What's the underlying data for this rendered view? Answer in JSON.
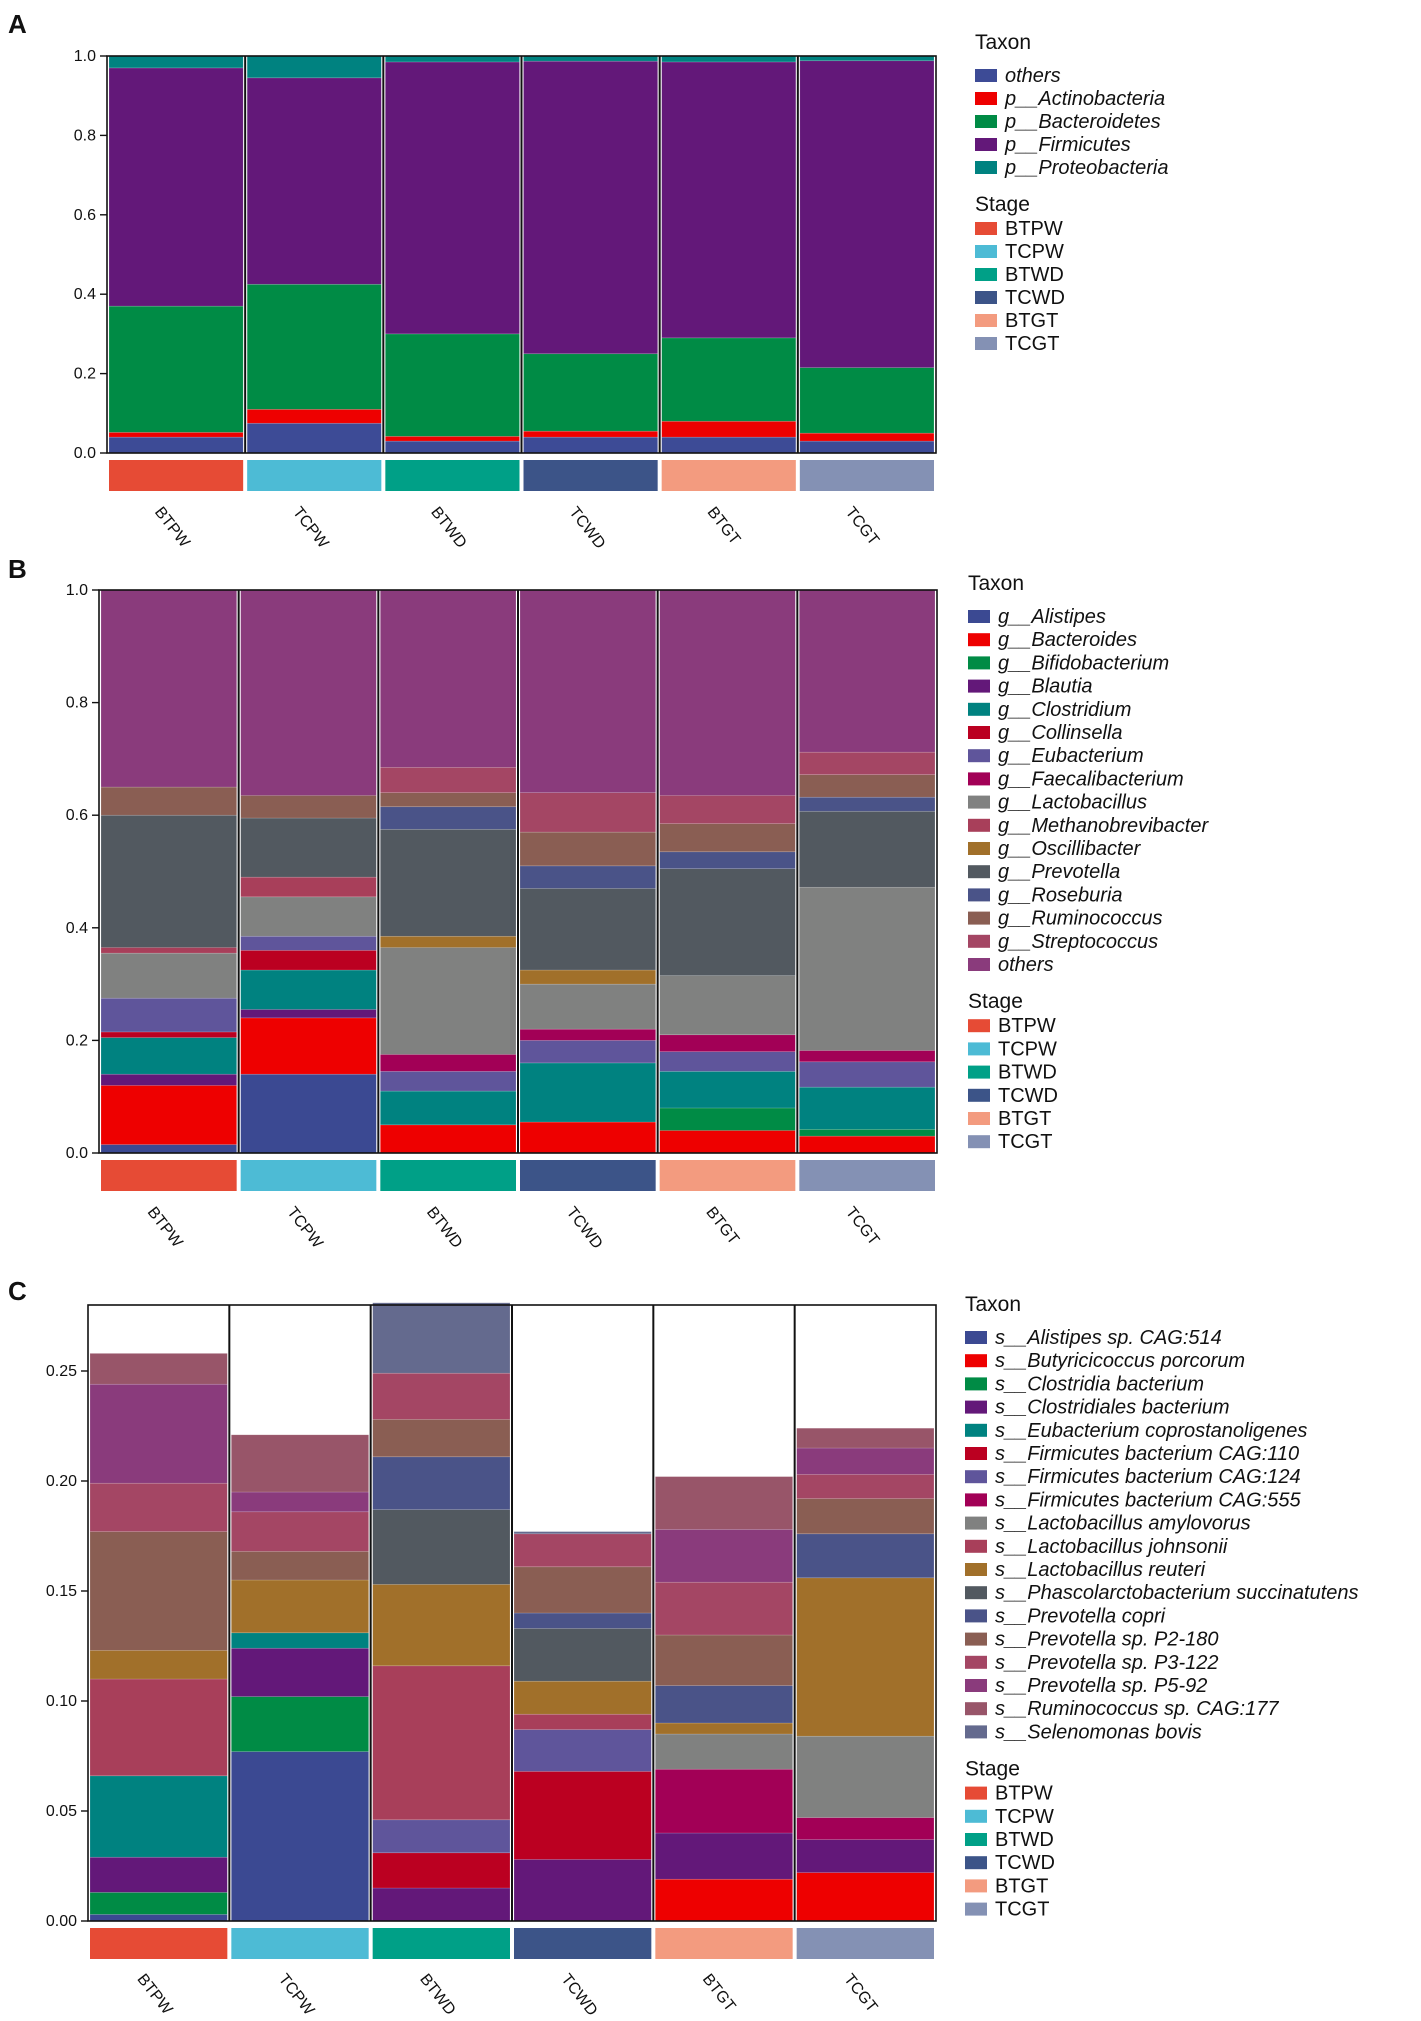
{
  "palette": {
    "others": "#3d4b96",
    "p__Actinobacteria": "#ee0000",
    "p__Bacteroidetes": "#008b45",
    "p__Firmicutes": "#631879",
    "p__Proteobacteria": "#008280",
    "g__Alistipes": "#3b4992",
    "g__Bacteroides": "#ee0000",
    "g__Bifidobacterium": "#008b45",
    "g__Blautia": "#631879",
    "g__Clostridium": "#008280",
    "g__Collinsella": "#bb0021",
    "g__Eubacterium": "#5f559b",
    "g__Faecalibacterium": "#a20056",
    "g__Lactobacillus": "#808180",
    "g__Methanobrevibacter": "#a83f5a",
    "g__Oscillibacter": "#a1702a",
    "g__Prevotella": "#525960",
    "g__Roseburia": "#4a5388",
    "g__Ruminococcus": "#8a5e53",
    "g__Streptococcus": "#a44664",
    "g__others": "#8a3b7c",
    "s1": "#3b4992",
    "s2": "#ee0000",
    "s3": "#008b45",
    "s4": "#631879",
    "s5": "#008280",
    "s6": "#bb0021",
    "s7": "#5f559b",
    "s8": "#a20056",
    "s9": "#808180",
    "s10": "#a83f5a",
    "s11": "#a1702a",
    "s12": "#525960",
    "s13": "#4a5388",
    "s14": "#8a5e53",
    "s15": "#a44664",
    "s16": "#8a3b7c",
    "s17": "#985569",
    "s18": "#646a8e",
    "stage_BTPW": "#e64b35",
    "stage_TCPW": "#4dbbd5",
    "stage_BTWD": "#00a087",
    "stage_TCWD": "#3c5488",
    "stage_BTGT": "#f39b7f",
    "stage_TCGT": "#8491b4"
  },
  "chart_data": [
    {
      "type": "bar",
      "panel": "A",
      "stacked": true,
      "categories": [
        "BTPW",
        "TCPW",
        "BTWD",
        "TCWD",
        "BTGT",
        "TCGT"
      ],
      "ylim": [
        0,
        1.0
      ],
      "yticks": [
        "0.0",
        "0.2",
        "0.4",
        "0.6",
        "0.8",
        "1.0"
      ],
      "ytick_values": [
        0,
        0.2,
        0.4,
        0.6,
        0.8,
        1.0
      ],
      "legend_title": "Taxon",
      "series": [
        {
          "name": "others",
          "key": "others",
          "values": [
            0.04,
            0.075,
            0.03,
            0.04,
            0.04,
            0.03
          ]
        },
        {
          "name": "p__Actinobacteria",
          "key": "p__Actinobacteria",
          "values": [
            0.012,
            0.035,
            0.012,
            0.015,
            0.04,
            0.02
          ]
        },
        {
          "name": "p__Bacteroidetes",
          "key": "p__Bacteroidetes",
          "values": [
            0.318,
            0.315,
            0.258,
            0.195,
            0.21,
            0.165
          ]
        },
        {
          "name": "p__Firmicutes",
          "key": "p__Firmicutes",
          "values": [
            0.6,
            0.52,
            0.685,
            0.737,
            0.695,
            0.773
          ]
        },
        {
          "name": "p__Proteobacteria",
          "key": "p__Proteobacteria",
          "values": [
            0.03,
            0.055,
            0.015,
            0.013,
            0.015,
            0.012
          ]
        }
      ]
    },
    {
      "type": "bar",
      "panel": "B",
      "stacked": true,
      "categories": [
        "BTPW",
        "TCPW",
        "BTWD",
        "TCWD",
        "BTGT",
        "TCGT"
      ],
      "ylim": [
        0,
        1.0
      ],
      "yticks": [
        "0.0",
        "0.2",
        "0.4",
        "0.6",
        "0.8",
        "1.0"
      ],
      "ytick_values": [
        0,
        0.2,
        0.4,
        0.6,
        0.8,
        1.0
      ],
      "legend_title": "Taxon",
      "series": [
        {
          "name": "g__Alistipes",
          "key": "g__Alistipes",
          "values": [
            0.015,
            0.14,
            0.0,
            0.0,
            0.0,
            0.0
          ]
        },
        {
          "name": "g__Bacteroides",
          "key": "g__Bacteroides",
          "values": [
            0.105,
            0.1,
            0.05,
            0.055,
            0.04,
            0.03
          ]
        },
        {
          "name": "g__Bifidobacterium",
          "key": "g__Bifidobacterium",
          "values": [
            0.0,
            0.0,
            0.0,
            0.0,
            0.04,
            0.012
          ]
        },
        {
          "name": "g__Blautia",
          "key": "g__Blautia",
          "values": [
            0.02,
            0.015,
            0.0,
            0.0,
            0.0,
            0.0
          ]
        },
        {
          "name": "g__Clostridium",
          "key": "g__Clostridium",
          "values": [
            0.065,
            0.07,
            0.06,
            0.105,
            0.065,
            0.075
          ]
        },
        {
          "name": "g__Collinsella",
          "key": "g__Collinsella",
          "values": [
            0.01,
            0.035,
            0.0,
            0.0,
            0.0,
            0.0
          ]
        },
        {
          "name": "g__Eubacterium",
          "key": "g__Eubacterium",
          "values": [
            0.06,
            0.025,
            0.035,
            0.04,
            0.035,
            0.045
          ]
        },
        {
          "name": "g__Faecalibacterium",
          "key": "g__Faecalibacterium",
          "values": [
            0.0,
            0.0,
            0.03,
            0.02,
            0.03,
            0.02
          ]
        },
        {
          "name": "g__Lactobacillus",
          "key": "g__Lactobacillus",
          "values": [
            0.08,
            0.07,
            0.19,
            0.08,
            0.105,
            0.29
          ]
        },
        {
          "name": "g__Methanobrevibacter",
          "key": "g__Methanobrevibacter",
          "values": [
            0.01,
            0.035,
            0.0,
            0.0,
            0.0,
            0.0
          ]
        },
        {
          "name": "g__Oscillibacter",
          "key": "g__Oscillibacter",
          "values": [
            0.0,
            0.0,
            0.02,
            0.025,
            0.0,
            0.0
          ]
        },
        {
          "name": "g__Prevotella",
          "key": "g__Prevotella",
          "values": [
            0.235,
            0.105,
            0.19,
            0.145,
            0.19,
            0.135
          ]
        },
        {
          "name": "g__Roseburia",
          "key": "g__Roseburia",
          "values": [
            0.0,
            0.0,
            0.04,
            0.04,
            0.03,
            0.025
          ]
        },
        {
          "name": "g__Ruminococcus",
          "key": "g__Ruminococcus",
          "values": [
            0.05,
            0.04,
            0.025,
            0.06,
            0.05,
            0.04
          ]
        },
        {
          "name": "g__Streptococcus",
          "key": "g__Streptococcus",
          "values": [
            0.0,
            0.0,
            0.045,
            0.07,
            0.05,
            0.04
          ]
        },
        {
          "name": "others",
          "key": "g__others",
          "values": [
            0.35,
            0.365,
            0.315,
            0.36,
            0.365,
            0.288
          ]
        }
      ]
    },
    {
      "type": "bar",
      "panel": "C",
      "stacked": true,
      "categories": [
        "BTPW",
        "TCPW",
        "BTWD",
        "TCWD",
        "BTGT",
        "TCGT"
      ],
      "ylim": [
        0,
        0.28
      ],
      "yticks": [
        "0.00",
        "0.05",
        "0.10",
        "0.15",
        "0.20",
        "0.25"
      ],
      "ytick_values": [
        0,
        0.05,
        0.1,
        0.15,
        0.2,
        0.25
      ],
      "legend_title": "Taxon",
      "series": [
        {
          "name": "s__Alistipes sp. CAG:514",
          "key": "s1",
          "values": [
            0.003,
            0.077,
            0.0,
            0.0,
            0.0,
            0.0
          ]
        },
        {
          "name": "s__Butyricicoccus porcorum",
          "key": "s2",
          "values": [
            0.0,
            0.0,
            0.0,
            0.0,
            0.019,
            0.022
          ]
        },
        {
          "name": "s__Clostridia bacterium",
          "key": "s3",
          "values": [
            0.01,
            0.025,
            0.0,
            0.0,
            0.0,
            0.0
          ]
        },
        {
          "name": "s__Clostridiales bacterium",
          "key": "s4",
          "values": [
            0.016,
            0.022,
            0.015,
            0.028,
            0.021,
            0.015
          ]
        },
        {
          "name": "s__Eubacterium coprostanoligenes",
          "key": "s5",
          "values": [
            0.037,
            0.007,
            0.0,
            0.0,
            0.0,
            0.0
          ]
        },
        {
          "name": "s__Firmicutes bacterium CAG:110",
          "key": "s6",
          "values": [
            0.0,
            0.0,
            0.016,
            0.04,
            0.0,
            0.0
          ]
        },
        {
          "name": "s__Firmicutes bacterium CAG:124",
          "key": "s7",
          "values": [
            0.0,
            0.0,
            0.015,
            0.019,
            0.0,
            0.0
          ]
        },
        {
          "name": "s__Firmicutes bacterium CAG:555",
          "key": "s8",
          "values": [
            0.0,
            0.0,
            0.0,
            0.0,
            0.029,
            0.01
          ]
        },
        {
          "name": "s__Lactobacillus amylovorus",
          "key": "s9",
          "values": [
            0.0,
            0.0,
            0.0,
            0.0,
            0.016,
            0.037
          ]
        },
        {
          "name": "s__Lactobacillus johnsonii",
          "key": "s10",
          "values": [
            0.044,
            0.0,
            0.07,
            0.007,
            0.0,
            0.0
          ]
        },
        {
          "name": "s__Lactobacillus reuteri",
          "key": "s11",
          "values": [
            0.013,
            0.024,
            0.037,
            0.015,
            0.005,
            0.072
          ]
        },
        {
          "name": "s__Phascolarctobacterium succinatutens",
          "key": "s12",
          "values": [
            0.0,
            0.0,
            0.034,
            0.024,
            0.0,
            0.0
          ]
        },
        {
          "name": "s__Prevotella copri",
          "key": "s13",
          "values": [
            0.0,
            0.0,
            0.024,
            0.007,
            0.017,
            0.02
          ]
        },
        {
          "name": "s__Prevotella sp. P2-180",
          "key": "s14",
          "values": [
            0.054,
            0.013,
            0.017,
            0.021,
            0.023,
            0.016
          ]
        },
        {
          "name": "s__Prevotella sp. P3-122",
          "key": "s15",
          "values": [
            0.022,
            0.018,
            0.021,
            0.015,
            0.024,
            0.011
          ]
        },
        {
          "name": "s__Prevotella sp. P5-92",
          "key": "s16",
          "values": [
            0.045,
            0.009,
            0.0,
            0.0,
            0.024,
            0.012
          ]
        },
        {
          "name": "s__Ruminococcus sp. CAG:177",
          "key": "s17",
          "values": [
            0.014,
            0.026,
            0.0,
            0.0,
            0.024,
            0.009
          ]
        },
        {
          "name": "s__Selenomonas bovis",
          "key": "s18",
          "values": [
            0.0,
            0.0,
            0.032,
            0.001,
            0.0,
            0.0
          ]
        }
      ]
    }
  ],
  "panels": [
    {
      "letter": "A"
    },
    {
      "letter": "B"
    },
    {
      "letter": "C"
    }
  ],
  "stage_legend": {
    "title": "Stage",
    "items": [
      {
        "label": "BTPW",
        "color_key": "stage_BTPW"
      },
      {
        "label": "TCPW",
        "color_key": "stage_TCPW"
      },
      {
        "label": "BTWD",
        "color_key": "stage_BTWD"
      },
      {
        "label": "TCWD",
        "color_key": "stage_TCWD"
      },
      {
        "label": "BTGT",
        "color_key": "stage_BTGT"
      },
      {
        "label": "TCGT",
        "color_key": "stage_TCGT"
      }
    ]
  }
}
